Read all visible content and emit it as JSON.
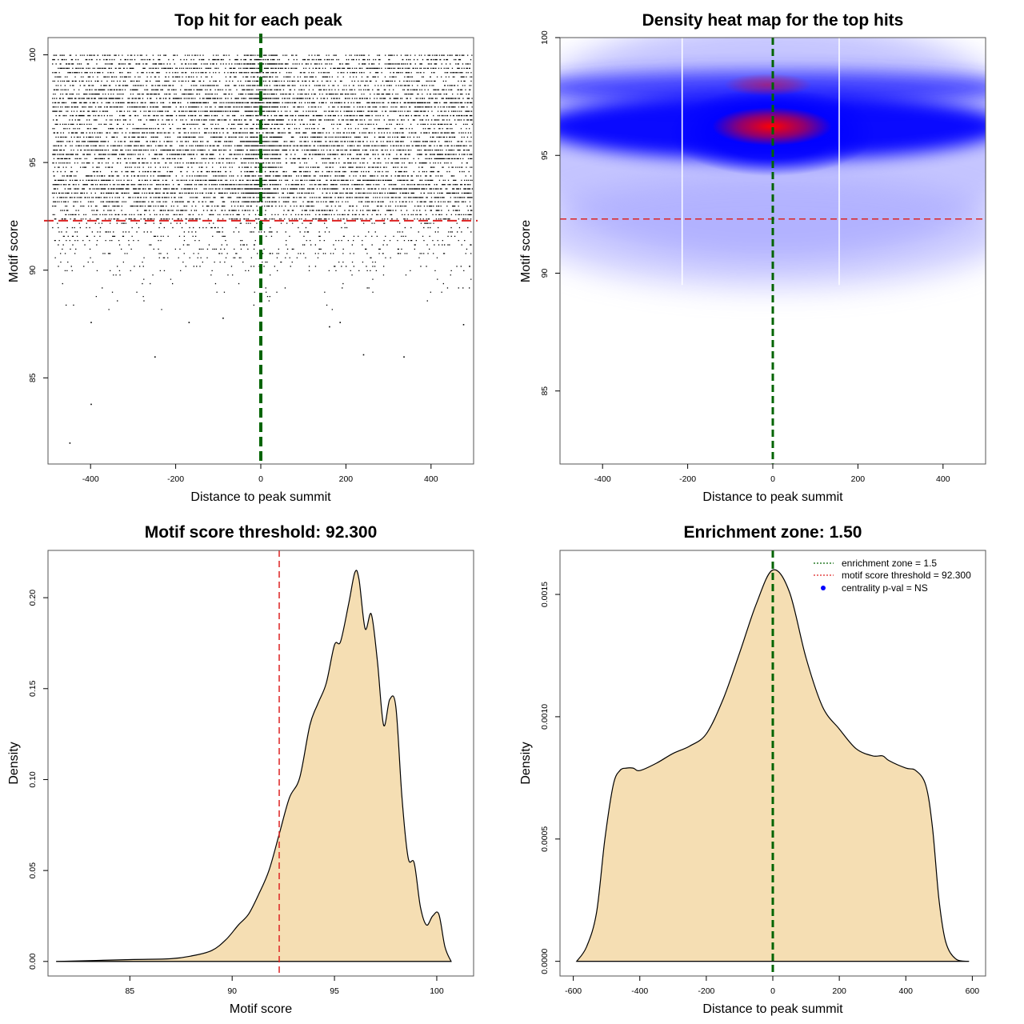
{
  "colors": {
    "threshold": "#dd2222",
    "zone": "#006400",
    "fill": "#f5deb3",
    "heat_low": "#ffffff",
    "heat_mid": "#0000ff",
    "heat_high": "#ff0000"
  },
  "chart_data": [
    {
      "id": "scatter",
      "type": "scatter",
      "title": "Top hit for each peak",
      "xlabel": "Distance to peak summit",
      "ylabel": "Motif score",
      "xlim": [
        -500,
        500
      ],
      "ylim": [
        81,
        100.8
      ],
      "xticks": [
        "-400",
        "-200",
        "0",
        "200",
        "400"
      ],
      "yticks": [
        "85",
        "90",
        "95",
        "100"
      ],
      "hline": 92.3,
      "vline": 0,
      "outliers": [
        [
          -450,
          82.0
        ],
        [
          -400,
          83.8
        ],
        [
          -250,
          86.0
        ],
        [
          -400,
          87.6
        ],
        [
          -90,
          87.8
        ],
        [
          -170,
          87.6
        ],
        [
          240,
          86.1
        ],
        [
          335,
          86.0
        ],
        [
          475,
          87.5
        ],
        [
          160,
          87.4
        ],
        [
          185,
          87.6
        ]
      ]
    },
    {
      "id": "heatmap",
      "type": "heatmap",
      "title": "Density heat map for the top hits",
      "xlabel": "Distance to peak summit",
      "ylabel": "Motif score",
      "xlim": [
        -500,
        500
      ],
      "ylim": [
        81.9,
        100
      ],
      "xticks": [
        "-400",
        "-200",
        "0",
        "200",
        "400"
      ],
      "yticks": [
        "85",
        "90",
        "95",
        "100"
      ],
      "hline": 92.3,
      "vline": 0,
      "white_vlines": [
        -213,
        156
      ]
    },
    {
      "id": "score_density",
      "type": "area",
      "title": "Motif score threshold: 92.300",
      "xlabel": "Motif score",
      "ylabel": "Density",
      "xlim": [
        81,
        101.8
      ],
      "ylim": [
        -0.008,
        0.226
      ],
      "xticks": [
        "85",
        "90",
        "95",
        "100"
      ],
      "yticks": [
        "0.00",
        "0.05",
        "0.10",
        "0.15",
        "0.20"
      ],
      "vline": 92.3,
      "x": [
        81.4,
        85,
        87,
        88,
        89,
        89.7,
        90.3,
        90.8,
        91.3,
        91.8,
        92.3,
        92.8,
        93.3,
        93.8,
        94.2,
        94.6,
        95.0,
        95.3,
        95.7,
        96.0,
        96.2,
        96.5,
        96.8,
        97.1,
        97.4,
        97.7,
        98.0,
        98.3,
        98.6,
        98.9,
        99.2,
        99.5,
        99.8,
        100.1,
        100.4,
        100.7
      ],
      "y": [
        0.0,
        0.001,
        0.0015,
        0.003,
        0.006,
        0.012,
        0.02,
        0.026,
        0.037,
        0.05,
        0.07,
        0.09,
        0.101,
        0.13,
        0.142,
        0.153,
        0.174,
        0.176,
        0.197,
        0.214,
        0.21,
        0.183,
        0.191,
        0.165,
        0.13,
        0.144,
        0.14,
        0.09,
        0.057,
        0.054,
        0.03,
        0.02,
        0.025,
        0.026,
        0.008,
        0.0
      ]
    },
    {
      "id": "distance_density",
      "type": "area",
      "title": "Enrichment zone: 1.50",
      "xlabel": "Distance to peak summit",
      "ylabel": "Density",
      "xlim": [
        -640,
        640
      ],
      "ylim": [
        -6e-05,
        0.00168
      ],
      "xticks": [
        "-600",
        "-400",
        "-200",
        "0",
        "200",
        "400",
        "600"
      ],
      "yticks": [
        "0.0000",
        "0.0005",
        "0.0010",
        "0.0015"
      ],
      "vline": 0,
      "x": [
        -590,
        -560,
        -530,
        -505,
        -480,
        -460,
        -440,
        -420,
        -400,
        -350,
        -300,
        -250,
        -200,
        -150,
        -100,
        -50,
        0,
        50,
        100,
        150,
        200,
        250,
        300,
        330,
        350,
        400,
        430,
        460,
        480,
        500,
        520,
        550,
        590
      ],
      "y": [
        0.0,
        6e-05,
        0.0002,
        0.0005,
        0.00072,
        0.00078,
        0.00079,
        0.00079,
        0.00078,
        0.00081,
        0.00085,
        0.00088,
        0.00093,
        0.00107,
        0.00126,
        0.00146,
        0.0016,
        0.00151,
        0.00124,
        0.00104,
        0.00095,
        0.00087,
        0.00084,
        0.00084,
        0.00082,
        0.00079,
        0.00078,
        0.00072,
        0.00055,
        0.00025,
        8e-05,
        1e-05,
        0.0
      ],
      "legend": [
        {
          "label": "enrichment zone = 1.5",
          "symbol": "dotted-line"
        },
        {
          "label": "motif score threshold = 92.300",
          "symbol": "dotted-line"
        },
        {
          "label": "centrality p-val = NS",
          "symbol": "dot"
        }
      ]
    }
  ]
}
